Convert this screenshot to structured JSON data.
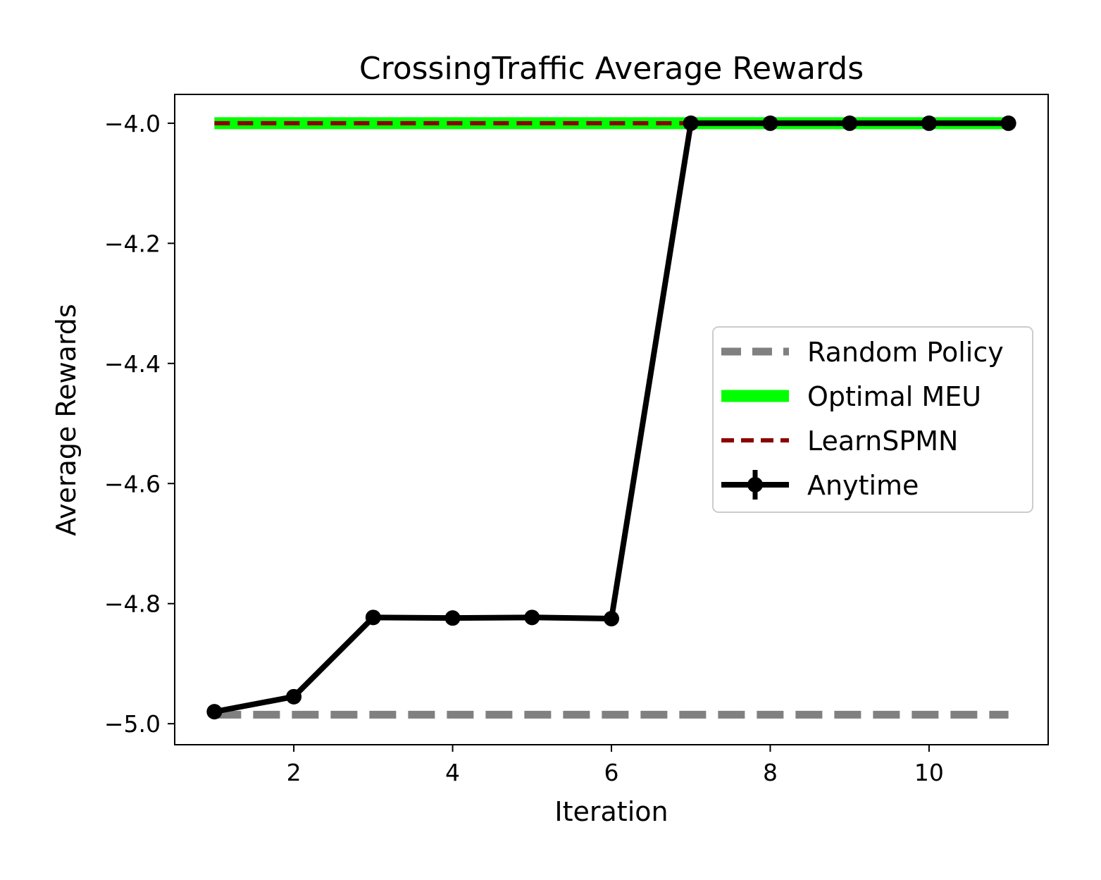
{
  "chart_data": {
    "type": "line",
    "title": "CrossingTraffic Average Rewards",
    "xlabel": "Iteration",
    "ylabel": "Average Rewards",
    "xlim": [
      0.5,
      11.5
    ],
    "ylim": [
      -5.035,
      -3.952
    ],
    "x_ticks": [
      2,
      4,
      6,
      8,
      10
    ],
    "x_tick_labels": [
      "2",
      "4",
      "6",
      "8",
      "10"
    ],
    "y_ticks": [
      -4.0,
      -4.2,
      -4.4,
      -4.6,
      -4.8,
      -5.0
    ],
    "y_tick_labels": [
      "−4.0",
      "−4.2",
      "−4.4",
      "−4.6",
      "−4.8",
      "−5.0"
    ],
    "grid": false,
    "legend_position": "center-right",
    "series": [
      {
        "name": "Random Policy",
        "style": "dashed",
        "color": "#808080",
        "x": [
          1,
          11
        ],
        "y": [
          -4.985,
          -4.985
        ]
      },
      {
        "name": "Optimal MEU",
        "style": "solid-thick",
        "color": "#00ff00",
        "x": [
          1,
          11
        ],
        "y": [
          -4.0,
          -4.0
        ]
      },
      {
        "name": "LearnSPMN",
        "style": "dashed",
        "color": "#8b0000",
        "x": [
          1,
          11
        ],
        "y": [
          -4.0,
          -4.0
        ]
      },
      {
        "name": "Anytime",
        "style": "solid-markers",
        "color": "#000000",
        "x": [
          1,
          2,
          3,
          4,
          5,
          6,
          7,
          8,
          9,
          10,
          11
        ],
        "y": [
          -4.98,
          -4.955,
          -4.823,
          -4.824,
          -4.823,
          -4.825,
          -4.0,
          -4.0,
          -4.0,
          -4.0,
          -4.0
        ]
      }
    ]
  }
}
